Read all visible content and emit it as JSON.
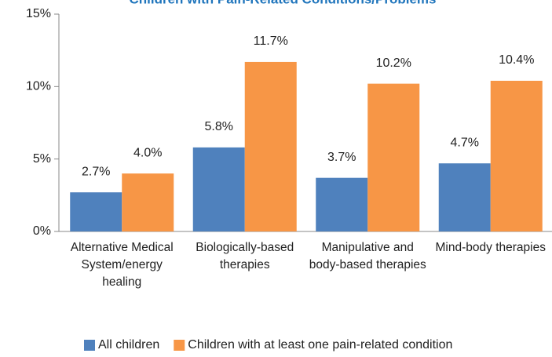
{
  "chart_data": {
    "type": "bar",
    "title": "Children with Pain-Related Conditions/Problems",
    "categories": [
      "Alternative Medical System/energy healing",
      "Biologically-based therapies",
      "Manipulative and body-based therapies",
      "Mind-body therapies"
    ],
    "series": [
      {
        "name": "All children",
        "color": "#4f81bd",
        "values": [
          2.7,
          5.8,
          3.7,
          4.7
        ],
        "value_labels": [
          "2.7%",
          "5.8%",
          "3.7%",
          "4.7%"
        ]
      },
      {
        "name": "Children with at least one pain-related condition",
        "color": "#f79646",
        "values": [
          4.0,
          11.7,
          10.2,
          10.4
        ],
        "value_labels": [
          "4.0%",
          "11.7%",
          "10.2%",
          "10.4%"
        ]
      }
    ],
    "ylim": [
      0,
      15
    ],
    "yticks": [
      {
        "value": 0,
        "label": "0%"
      },
      {
        "value": 5,
        "label": "5%"
      },
      {
        "value": 10,
        "label": "10%"
      },
      {
        "value": 15,
        "label": "15%"
      }
    ],
    "grid": false,
    "legend": "bottom"
  }
}
